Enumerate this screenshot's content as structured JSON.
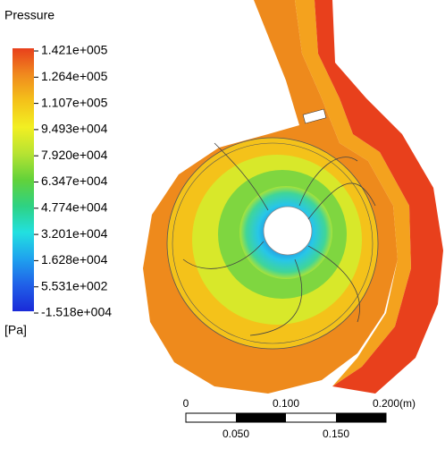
{
  "legend": {
    "title": "Pressure",
    "labels": [
      "1.421e+005",
      "1.264e+005",
      "1.107e+005",
      "9.493e+004",
      "7.920e+004",
      "6.347e+004",
      "4.774e+004",
      "3.201e+004",
      "1.628e+004",
      "5.531e+002",
      "-1.518e+004"
    ],
    "unit": "[Pa]"
  },
  "scale_bar": {
    "top_labels": [
      "0",
      "0.100",
      "0.200"
    ],
    "unit": "(m)",
    "bottom_labels": [
      "0.050",
      "0.150"
    ]
  }
}
